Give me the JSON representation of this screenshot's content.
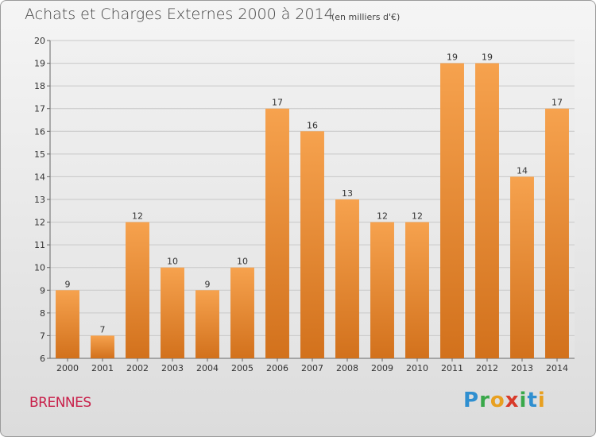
{
  "chart_data": {
    "type": "bar",
    "title": "Achats et Charges Externes 2000 à 2014",
    "subtitle": "(en milliers d'€)",
    "categories": [
      "2000",
      "2001",
      "2002",
      "2003",
      "2004",
      "2005",
      "2006",
      "2007",
      "2008",
      "2009",
      "2010",
      "2011",
      "2012",
      "2013",
      "2014"
    ],
    "values": [
      9,
      7,
      12,
      10,
      9,
      10,
      17,
      16,
      13,
      12,
      12,
      19,
      19,
      14,
      17
    ],
    "ylim": [
      6,
      20
    ],
    "yticks": [
      6,
      7,
      8,
      9,
      10,
      11,
      12,
      13,
      14,
      15,
      16,
      17,
      18,
      19,
      20
    ],
    "grid": true,
    "bar_color": "#f2943a",
    "bar_color_dark": "#d0701c"
  },
  "footer": {
    "town": "BRENNES",
    "logo": [
      "P",
      "r",
      "o",
      "x",
      "i",
      "t",
      "i"
    ]
  }
}
